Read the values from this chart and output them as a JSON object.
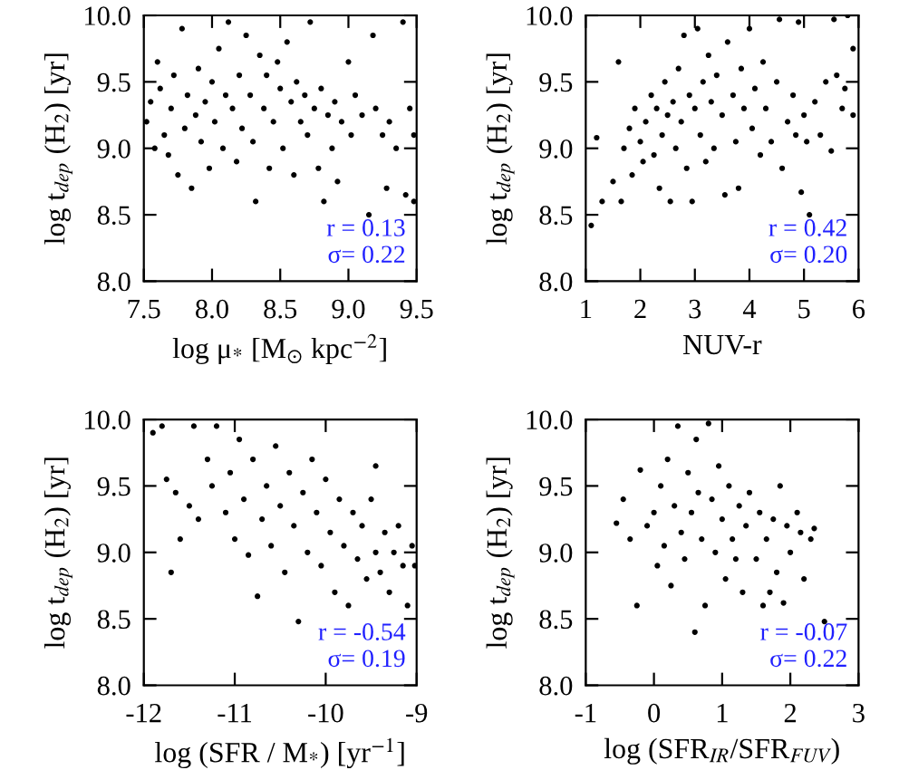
{
  "chart_data": [
    {
      "type": "scatter",
      "xlabel": "log μ$_{*}$ [M$_{⊙}$ kpc$^{−2}$]",
      "ylabel": "log t$_{dep}$ (H$_{2}$) [yr]",
      "xlim": [
        7.5,
        9.5
      ],
      "ylim": [
        8.0,
        10.0
      ],
      "xticks": [
        {
          "value": 7.5,
          "label": "7.5"
        },
        {
          "value": 8.0,
          "label": "8.0"
        },
        {
          "value": 8.5,
          "label": "8.5"
        },
        {
          "value": 9.0,
          "label": "9.0"
        },
        {
          "value": 9.5,
          "label": "9.5"
        }
      ],
      "yticks": [
        {
          "value": 8.0,
          "label": "8.0"
        },
        {
          "value": 8.5,
          "label": "8.5"
        },
        {
          "value": 9.0,
          "label": "9.0"
        },
        {
          "value": 9.5,
          "label": "9.5"
        },
        {
          "value": 10.0,
          "label": "10.0"
        }
      ],
      "annotations": [
        "r = 0.13",
        "σ= 0.22"
      ],
      "marker": "circle",
      "grid": false,
      "series": [
        {
          "color": "#000000",
          "x": [
            7.52,
            7.55,
            7.58,
            7.6,
            7.62,
            7.65,
            7.68,
            7.7,
            7.72,
            7.75,
            7.78,
            7.8,
            7.82,
            7.85,
            7.88,
            7.9,
            7.92,
            7.95,
            7.98,
            8.0,
            8.02,
            8.05,
            8.08,
            8.1,
            8.12,
            8.15,
            8.18,
            8.2,
            8.22,
            8.25,
            8.28,
            8.3,
            8.32,
            8.35,
            8.38,
            8.4,
            8.42,
            8.45,
            8.48,
            8.5,
            8.52,
            8.55,
            8.58,
            8.6,
            8.62,
            8.65,
            8.68,
            8.7,
            8.72,
            8.75,
            8.78,
            8.8,
            8.82,
            8.85,
            8.88,
            8.9,
            8.92,
            8.95,
            9.0,
            9.02,
            9.05,
            9.1,
            9.15,
            9.18,
            9.2,
            9.25,
            9.28,
            9.3,
            9.35,
            9.4,
            9.42,
            9.45,
            9.48,
            9.48
          ],
          "values": [
            9.2,
            9.35,
            9.0,
            9.65,
            9.45,
            9.1,
            8.95,
            9.3,
            9.55,
            8.8,
            9.9,
            9.15,
            9.4,
            8.7,
            9.25,
            9.6,
            9.05,
            9.35,
            8.85,
            9.5,
            9.2,
            9.75,
            9.0,
            9.4,
            9.95,
            9.3,
            8.9,
            9.55,
            9.15,
            9.85,
            9.4,
            9.05,
            8.6,
            9.7,
            9.3,
            9.55,
            8.85,
            9.2,
            9.65,
            9.45,
            9.0,
            9.8,
            9.35,
            8.8,
            9.5,
            9.2,
            9.4,
            9.1,
            9.95,
            9.3,
            8.85,
            9.45,
            8.6,
            9.25,
            9.0,
            9.35,
            8.75,
            9.2,
            9.65,
            9.1,
            9.4,
            9.25,
            8.5,
            9.85,
            9.3,
            9.1,
            8.7,
            9.2,
            9.0,
            9.95,
            8.65,
            9.3,
            8.6,
            9.1
          ]
        }
      ]
    },
    {
      "type": "scatter",
      "xlabel": "NUV-r",
      "ylabel": "log t$_{dep}$ (H$_{2}$) [yr]",
      "xlim": [
        1,
        6
      ],
      "ylim": [
        8.0,
        10.0
      ],
      "xticks": [
        1,
        2,
        3,
        4,
        5,
        6
      ],
      "yticks": [
        {
          "value": 8.0,
          "label": "8.0"
        },
        {
          "value": 8.5,
          "label": "8.5"
        },
        {
          "value": 9.0,
          "label": "9.0"
        },
        {
          "value": 9.5,
          "label": "9.5"
        },
        {
          "value": 10.0,
          "label": "10.0"
        }
      ],
      "annotations": [
        "r = 0.42",
        "σ= 0.20"
      ],
      "marker": "circle",
      "grid": false,
      "series": [
        {
          "color": "#000000",
          "x": [
            1.1,
            1.2,
            1.3,
            1.5,
            1.6,
            1.65,
            1.7,
            1.8,
            1.85,
            1.9,
            2.0,
            2.05,
            2.1,
            2.2,
            2.25,
            2.3,
            2.35,
            2.4,
            2.45,
            2.5,
            2.55,
            2.6,
            2.65,
            2.7,
            2.75,
            2.8,
            2.85,
            2.9,
            2.95,
            3.0,
            3.05,
            3.1,
            3.15,
            3.2,
            3.25,
            3.3,
            3.35,
            3.4,
            3.5,
            3.55,
            3.6,
            3.7,
            3.75,
            3.8,
            3.85,
            3.9,
            4.0,
            4.05,
            4.1,
            4.2,
            4.25,
            4.3,
            4.4,
            4.5,
            4.55,
            4.6,
            4.7,
            4.8,
            4.85,
            4.9,
            4.95,
            5.0,
            5.05,
            5.1,
            5.2,
            5.3,
            5.4,
            5.5,
            5.55,
            5.6,
            5.7,
            5.75,
            5.8,
            5.9,
            5.9
          ],
          "values": [
            8.42,
            9.08,
            8.6,
            8.75,
            9.65,
            8.6,
            9.0,
            9.15,
            8.8,
            9.3,
            9.05,
            8.9,
            9.2,
            9.4,
            8.95,
            9.3,
            8.7,
            9.1,
            9.5,
            9.25,
            8.6,
            9.35,
            9.0,
            9.6,
            9.2,
            9.85,
            8.85,
            9.4,
            8.6,
            9.3,
            9.9,
            9.1,
            9.5,
            8.9,
            9.7,
            9.35,
            9.0,
            9.55,
            9.25,
            8.65,
            9.8,
            9.4,
            9.05,
            8.7,
            9.6,
            9.3,
            9.9,
            9.15,
            9.45,
            8.95,
            9.65,
            9.3,
            9.05,
            9.5,
            9.97,
            8.85,
            9.2,
            9.4,
            9.1,
            9.95,
            8.67,
            9.25,
            9.05,
            8.5,
            9.35,
            9.1,
            9.5,
            8.98,
            9.97,
            9.55,
            9.3,
            9.45,
            10.0,
            9.75,
            9.25
          ]
        }
      ]
    },
    {
      "type": "scatter",
      "xlabel": "log (SFR / M$_{*}$) [yr$^{−1}$]",
      "ylabel": "log t$_{dep}$ (H$_{2}$) [yr]",
      "xlim": [
        -12,
        -9
      ],
      "ylim": [
        8.0,
        10.0
      ],
      "xticks": [
        {
          "value": -12,
          "label": "-12"
        },
        {
          "value": -11,
          "label": "-11"
        },
        {
          "value": -10,
          "label": "-10"
        },
        {
          "value": -9,
          "label": "-9"
        }
      ],
      "yticks": [
        {
          "value": 8.0,
          "label": "8.0"
        },
        {
          "value": 8.5,
          "label": "8.5"
        },
        {
          "value": 9.0,
          "label": "9.0"
        },
        {
          "value": 9.5,
          "label": "9.5"
        },
        {
          "value": 10.0,
          "label": "10.0"
        }
      ],
      "annotations": [
        "r = -0.54",
        "σ= 0.19"
      ],
      "marker": "circle",
      "grid": false,
      "series": [
        {
          "color": "#000000",
          "x": [
            -11.9,
            -11.8,
            -11.75,
            -11.7,
            -11.65,
            -11.6,
            -11.5,
            -11.45,
            -11.4,
            -11.3,
            -11.25,
            -11.2,
            -11.1,
            -11.05,
            -11.0,
            -10.95,
            -10.9,
            -10.85,
            -10.8,
            -10.75,
            -10.7,
            -10.65,
            -10.6,
            -10.55,
            -10.5,
            -10.45,
            -10.4,
            -10.35,
            -10.3,
            -10.25,
            -10.2,
            -10.15,
            -10.1,
            -10.05,
            -10.0,
            -9.95,
            -9.9,
            -9.85,
            -9.8,
            -9.75,
            -9.7,
            -9.65,
            -9.6,
            -9.55,
            -9.5,
            -9.45,
            -9.45,
            -9.4,
            -9.35,
            -9.3,
            -9.25,
            -9.2,
            -9.15,
            -9.1,
            -9.05,
            -9.02
          ],
          "values": [
            9.9,
            9.95,
            9.55,
            8.85,
            9.45,
            9.1,
            9.35,
            9.95,
            9.25,
            9.7,
            9.5,
            9.95,
            9.3,
            9.6,
            9.1,
            9.85,
            9.4,
            8.98,
            9.7,
            8.67,
            9.25,
            9.5,
            9.05,
            9.8,
            9.35,
            8.85,
            9.6,
            9.2,
            8.48,
            9.45,
            9.0,
            9.7,
            9.3,
            8.9,
            9.55,
            9.15,
            8.7,
            9.4,
            9.05,
            8.6,
            9.3,
            8.95,
            9.2,
            8.8,
            9.4,
            9.65,
            9.0,
            8.85,
            9.15,
            8.7,
            9.0,
            9.2,
            8.9,
            8.6,
            9.05,
            8.9
          ]
        }
      ]
    },
    {
      "type": "scatter",
      "xlabel": "log (SFR$_{IR}$/SFR$_{FUV}$)",
      "ylabel": "log t$_{dep}$ (H$_{2}$) [yr]",
      "xlim": [
        -1,
        3
      ],
      "ylim": [
        8.0,
        10.0
      ],
      "xticks": [
        {
          "value": -1,
          "label": "-1"
        },
        0,
        1,
        2,
        3
      ],
      "yticks": [
        {
          "value": 8.0,
          "label": "8.0"
        },
        {
          "value": 8.5,
          "label": "8.5"
        },
        {
          "value": 9.0,
          "label": "9.0"
        },
        {
          "value": 9.5,
          "label": "9.5"
        },
        {
          "value": 10.0,
          "label": "10.0"
        }
      ],
      "annotations": [
        "r = -0.07",
        "σ= 0.22"
      ],
      "marker": "circle",
      "grid": false,
      "series": [
        {
          "color": "#000000",
          "x": [
            -0.55,
            -0.45,
            -0.35,
            -0.25,
            -0.2,
            -0.1,
            0.0,
            0.05,
            0.1,
            0.15,
            0.2,
            0.25,
            0.3,
            0.35,
            0.4,
            0.45,
            0.5,
            0.55,
            0.6,
            0.62,
            0.65,
            0.7,
            0.75,
            0.8,
            0.85,
            0.9,
            0.95,
            1.0,
            1.05,
            1.1,
            1.15,
            1.2,
            1.25,
            1.3,
            1.35,
            1.4,
            1.5,
            1.55,
            1.6,
            1.65,
            1.7,
            1.75,
            1.8,
            1.85,
            1.9,
            1.95,
            2.0,
            2.1,
            2.15,
            2.2,
            2.3,
            2.35,
            2.5
          ],
          "values": [
            9.22,
            9.4,
            9.1,
            8.6,
            9.62,
            9.2,
            9.3,
            8.9,
            9.5,
            9.05,
            9.7,
            8.75,
            9.35,
            9.95,
            9.15,
            8.95,
            9.6,
            9.3,
            8.4,
            9.85,
            9.45,
            9.1,
            8.6,
            9.97,
            9.4,
            9.0,
            9.65,
            9.25,
            8.8,
            9.5,
            9.1,
            8.95,
            9.35,
            8.7,
            9.2,
            9.45,
            8.95,
            9.3,
            8.6,
            9.1,
            8.7,
            9.25,
            8.85,
            9.5,
            8.62,
            9.2,
            9.0,
            9.3,
            9.15,
            8.8,
            9.1,
            9.18,
            8.48
          ]
        }
      ]
    }
  ]
}
